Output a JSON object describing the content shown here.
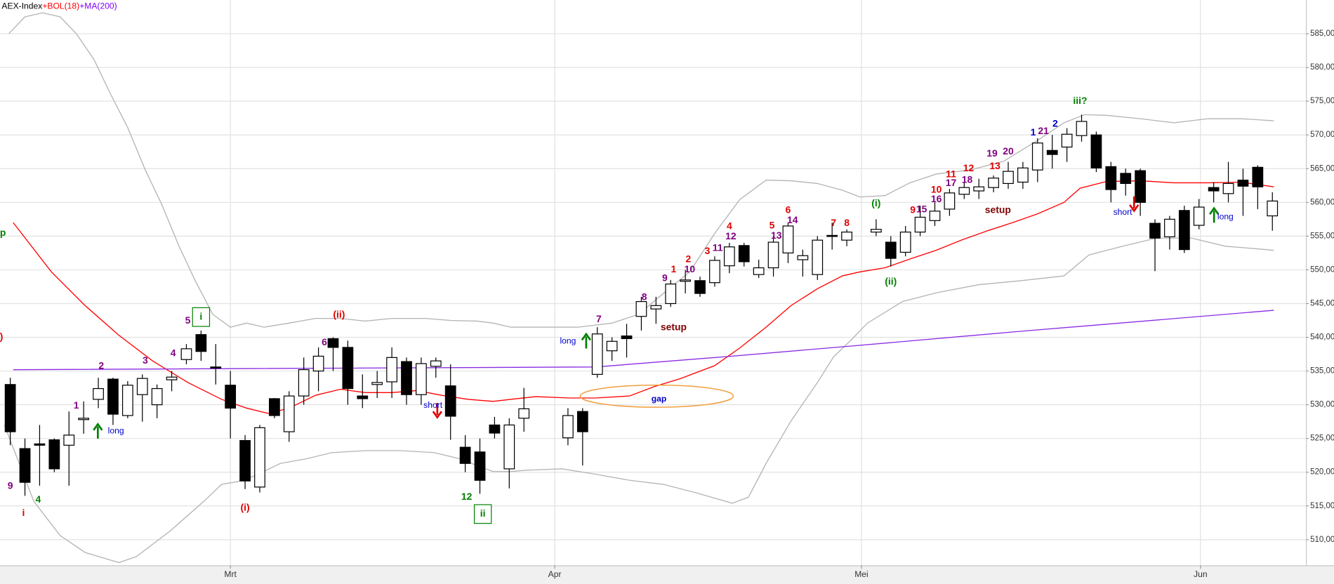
{
  "chart_data": {
    "type": "candlestick",
    "legend": [
      {
        "text": "AEX-Index",
        "color": "#000000"
      },
      {
        "text": "+BOL(18)",
        "color": "#ff0000"
      },
      {
        "text": "+MA(200)",
        "color": "#8000ff"
      }
    ],
    "x": [
      0,
      1,
      2,
      3,
      4,
      5,
      6,
      7,
      8,
      9,
      10,
      11,
      12,
      13,
      14,
      15,
      16,
      17,
      18,
      19,
      20,
      21,
      22,
      23,
      24,
      25,
      26,
      27,
      28,
      29,
      30,
      31,
      32,
      33,
      34,
      35,
      38,
      39,
      40,
      41,
      42,
      43,
      44,
      45,
      46,
      47,
      48,
      49,
      50,
      51,
      52,
      53,
      54,
      55,
      56,
      57,
      59,
      60,
      61,
      62,
      63,
      64,
      65,
      66,
      67,
      68,
      69,
      70,
      71,
      72,
      73,
      74,
      75,
      76,
      77,
      78,
      79,
      80,
      81,
      82,
      83,
      84,
      85,
      86
    ],
    "open": [
      533,
      523.5,
      524.2,
      524.8,
      524,
      527.8,
      530.8,
      533.8,
      528.4,
      531.5,
      530,
      533.7,
      536.7,
      540.4,
      535.6,
      532.9,
      524.7,
      517.8,
      530.9,
      526,
      531.3,
      535,
      539.8,
      538.5,
      531.3,
      533,
      533.4,
      536.4,
      531.5,
      535.7,
      532.8,
      523.7,
      523,
      527,
      520.5,
      528,
      525.1,
      529,
      534.5,
      538,
      540.2,
      543.1,
      544.2,
      545,
      548.3,
      548.4,
      548.1,
      550.6,
      553.6,
      549.3,
      550.3,
      552.5,
      551.5,
      549.3,
      555.1,
      554.4,
      555.6,
      554.1,
      552.6,
      555.6,
      557.3,
      559,
      561.2,
      561.7,
      562.2,
      562.8,
      563,
      564.8,
      567.7,
      568.2,
      569.9,
      570,
      565.3,
      564.3,
      564.7,
      556.9,
      554.9,
      558.8,
      556.6,
      562.2,
      561.3,
      563.3,
      565.2,
      558
    ],
    "high": [
      534,
      525,
      527,
      525,
      529,
      530.5,
      534,
      534,
      533.5,
      534.5,
      533,
      535,
      539,
      541,
      539,
      535,
      525.5,
      527,
      531,
      532,
      537,
      538.5,
      540,
      539.5,
      534.5,
      535,
      538.5,
      537,
      537,
      537,
      536,
      525.5,
      525,
      528.2,
      528,
      532.5,
      529.5,
      529.5,
      541.5,
      540,
      542,
      546,
      546,
      548.5,
      550,
      549,
      552,
      554,
      554,
      551.5,
      555,
      557,
      553,
      555,
      557,
      556,
      557.5,
      555,
      556.5,
      559.5,
      560,
      562,
      563,
      563.5,
      564,
      566,
      566,
      569.5,
      570,
      571,
      573,
      570.5,
      566,
      565,
      565,
      557.5,
      558,
      559.5,
      560.5,
      563,
      566,
      565,
      565.5,
      561.5
    ],
    "low": [
      524,
      516.5,
      518,
      520,
      518,
      525.7,
      529.5,
      527,
      528,
      527.5,
      528,
      532,
      536,
      536.5,
      533,
      525,
      517.5,
      517,
      528,
      524.5,
      530,
      532,
      535,
      530,
      529.5,
      531,
      531,
      530,
      530,
      534,
      524.8,
      520,
      516.8,
      525,
      517.6,
      526,
      524,
      521,
      534,
      536.5,
      537,
      541,
      542,
      544.5,
      546.5,
      546,
      547.5,
      549.5,
      550.5,
      548.8,
      549,
      551,
      549,
      548.5,
      553,
      553.5,
      555,
      550.5,
      552,
      555,
      556.5,
      558,
      560.5,
      560.5,
      561.5,
      562,
      562,
      563,
      565,
      566,
      569,
      564.5,
      560,
      561,
      558,
      549.8,
      553,
      552.5,
      556,
      560,
      560,
      558,
      559,
      555.8
    ],
    "close": [
      526,
      518.5,
      524,
      520.5,
      525.5,
      528,
      532.4,
      528.6,
      532.9,
      533.9,
      532.4,
      534.1,
      538.3,
      537.9,
      535.5,
      529.5,
      518.7,
      526.6,
      528.4,
      531.3,
      535.2,
      537.2,
      538.5,
      532.4,
      530.9,
      533.3,
      537,
      531.5,
      536.1,
      536.5,
      528.3,
      521.3,
      518.8,
      525.8,
      527,
      529.4,
      528.4,
      526,
      540.5,
      539.4,
      539.8,
      545.3,
      544.7,
      547.9,
      548.5,
      546.5,
      551.4,
      553.4,
      551.2,
      550.3,
      554.1,
      556.5,
      552.1,
      554.4,
      555,
      555.6,
      556,
      551.7,
      555.6,
      557.8,
      558.7,
      561.4,
      562.2,
      562.3,
      563.6,
      564.6,
      565.1,
      568.8,
      567.1,
      570.1,
      572,
      565.1,
      561.9,
      562.8,
      560,
      554.7,
      557.5,
      553,
      559.3,
      561.7,
      562.8,
      562.4,
      562.3,
      560.2
    ],
    "lines": [
      {
        "color": "#b4b4b4",
        "x": [
          -0.1,
          1.0,
          2.2,
          3.4,
          4.5,
          5.7,
          6.8,
          8.0,
          9.2,
          10.3,
          11.5,
          12.6,
          13.8,
          15.0,
          16.1,
          17.3,
          19.0,
          20.8,
          22.5,
          24.2,
          26.0,
          28.3,
          30.0,
          31.8,
          32.9,
          34.1,
          36.4,
          38.7,
          41.0,
          42.8,
          44.5,
          46.3,
          48.0,
          49.7,
          51.5,
          53.2,
          55.0,
          56.7,
          57.9,
          59.6,
          61.3,
          63.1,
          65.4,
          67.7,
          70.0,
          71.8,
          73.2,
          74.7,
          77.0,
          79.3,
          81.6,
          83.9,
          86.1
        ],
        "values": [
          585.0,
          587.5,
          588.1,
          587.5,
          585.0,
          581.2,
          576.2,
          571.1,
          564.8,
          559.8,
          553.5,
          548.4,
          543.4,
          541.5,
          542.1,
          541.5,
          542.1,
          542.8,
          542.8,
          542.4,
          542.8,
          542.8,
          542.5,
          542.4,
          542.1,
          541.5,
          541.5,
          541.5,
          542.1,
          543.4,
          546.5,
          549.7,
          555.4,
          560.4,
          563.3,
          563.2,
          562.8,
          561.8,
          560.8,
          561.0,
          562.9,
          564.2,
          564.8,
          566.1,
          569.2,
          571.8,
          573.0,
          572.9,
          572.4,
          571.8,
          572.4,
          572.4,
          572.1
        ]
      },
      {
        "color": "#b4b4b4",
        "x": [
          -0.4,
          1.6,
          3.4,
          5.1,
          7.4,
          8.6,
          10.9,
          13.2,
          14.4,
          15.5,
          16.7,
          18.4,
          20.2,
          21.9,
          24.2,
          26.6,
          28.9,
          30.6,
          31.8,
          32.9,
          34.1,
          35.2,
          37.6,
          39.9,
          42.2,
          44.5,
          46.8,
          49.2,
          50.3,
          51.5,
          53.2,
          55.0,
          56.1,
          57.3,
          58.4,
          60.8,
          63.1,
          66.0,
          68.9,
          71.8,
          73.5,
          75.8,
          78.1,
          80.5,
          82.8,
          84.5,
          86.1
        ],
        "values": [
          527.0,
          515.7,
          510.6,
          508.1,
          506.6,
          507.5,
          511.3,
          515.7,
          518.2,
          518.6,
          519.5,
          521.3,
          522.0,
          522.9,
          523.2,
          523.2,
          522.9,
          522.0,
          521.0,
          520.1,
          520.1,
          520.3,
          520.5,
          519.7,
          518.8,
          518.2,
          516.9,
          515.4,
          516.3,
          521.3,
          527.6,
          533.3,
          537.1,
          539.6,
          542.1,
          545.3,
          546.6,
          547.8,
          548.4,
          549.1,
          552.2,
          553.5,
          554.7,
          554.7,
          553.5,
          553.2,
          552.9
        ]
      },
      {
        "color": "#ff0000",
        "x": [
          0.2,
          2.8,
          5.1,
          7.4,
          9.7,
          12.1,
          14.4,
          16.1,
          17.6,
          19.0,
          20.8,
          22.5,
          24.2,
          26.0,
          27.7,
          29.4,
          31.2,
          32.9,
          34.1,
          35.8,
          38.1,
          39.9,
          42.2,
          43.9,
          45.7,
          48.0,
          49.7,
          51.5,
          53.2,
          55.0,
          56.7,
          57.9,
          59.6,
          61.3,
          63.1,
          64.8,
          66.6,
          68.3,
          70.0,
          71.8,
          72.9,
          74.7,
          77.0,
          79.3,
          81.6,
          83.9,
          86.1
        ],
        "values": [
          557.0,
          549.7,
          544.7,
          540.3,
          536.5,
          533.3,
          530.8,
          529.5,
          528.7,
          529.5,
          531.4,
          532.3,
          531.8,
          531.8,
          532.1,
          531.4,
          530.8,
          530.5,
          530.8,
          531.2,
          531.0,
          531.0,
          531.3,
          532.7,
          533.9,
          535.8,
          538.4,
          541.5,
          544.7,
          547.2,
          549.1,
          549.7,
          550.3,
          551.6,
          552.9,
          554.4,
          555.8,
          557.0,
          558.3,
          560.0,
          562.1,
          563.1,
          563.2,
          562.9,
          562.9,
          563.0,
          562.3
        ]
      },
      {
        "color": "#8a2be2",
        "x": [
          0.2,
          39.9,
          48.6,
          57.3,
          68.9,
          86.1
        ],
        "values": [
          535.2,
          535.6,
          537.1,
          538.7,
          540.9,
          544.0
        ]
      }
    ],
    "xlim": [
      -0.7,
      88.3
    ],
    "xticks": [
      {
        "value": 15,
        "label": "Mrt"
      },
      {
        "value": 37.1,
        "label": "Apr"
      },
      {
        "value": 58,
        "label": "Mei"
      },
      {
        "value": 81.1,
        "label": "Jun"
      }
    ],
    "ylim": [
      506.2,
      590
    ],
    "yticks": [
      {
        "value": 510,
        "label": "510,00"
      },
      {
        "value": 515,
        "label": "515,00"
      },
      {
        "value": 520,
        "label": "520,00"
      },
      {
        "value": 525,
        "label": "525,00"
      },
      {
        "value": 530,
        "label": "530,00"
      },
      {
        "value": 535,
        "label": "535,00"
      },
      {
        "value": 540,
        "label": "540,00"
      },
      {
        "value": 545,
        "label": "545,00"
      },
      {
        "value": 550,
        "label": "550,00"
      },
      {
        "value": 555,
        "label": "555,00"
      },
      {
        "value": 560,
        "label": "560,00"
      },
      {
        "value": 565,
        "label": "565,00"
      },
      {
        "value": 570,
        "label": "570,00"
      },
      {
        "value": 575,
        "label": "575,00"
      },
      {
        "value": 580,
        "label": "580,00"
      },
      {
        "value": 585,
        "label": "585,00"
      }
    ],
    "grid": true,
    "up_color": "#ffffff",
    "down_color": "#000000",
    "annotations": [
      {
        "text": "p",
        "x": -0.5,
        "y": 555.4,
        "color": "#008000"
      },
      {
        "text": ")",
        "x": -0.6,
        "y": 540.0,
        "color": "#e00000"
      },
      {
        "text": "9",
        "x": 0,
        "y": 517.9,
        "color": "#800080"
      },
      {
        "text": "4",
        "x": 1.9,
        "y": 515.9,
        "color": "#008000"
      },
      {
        "text": "i",
        "x": 0.9,
        "y": 513.9,
        "color": "#e00000"
      },
      {
        "text": "1",
        "x": 4.5,
        "y": 529.8,
        "color": "#800080"
      },
      {
        "text": "long",
        "x": 7.2,
        "y": 526.1,
        "color": "#0000cc"
      },
      {
        "text": "2",
        "x": 6.2,
        "y": 535.7,
        "color": "#800080"
      },
      {
        "text": "3",
        "x": 9.2,
        "y": 536.5,
        "color": "#800080"
      },
      {
        "text": "4",
        "x": 11.1,
        "y": 537.6,
        "color": "#800080"
      },
      {
        "text": "5",
        "x": 12.1,
        "y": 542.4,
        "color": "#800080"
      },
      {
        "text": "i",
        "x": 13.0,
        "y": 543.0,
        "color": "#008000",
        "boxed": true
      },
      {
        "text": "(i)",
        "x": 16.0,
        "y": 514.7,
        "color": "#e00000"
      },
      {
        "text": "(ii)",
        "x": 22.4,
        "y": 543.3,
        "color": "#e00000"
      },
      {
        "text": "6",
        "x": 21.4,
        "y": 539.2,
        "color": "#800080"
      },
      {
        "text": "short",
        "x": 28.8,
        "y": 529.9,
        "color": "#0000cc"
      },
      {
        "text": "12",
        "x": 31.1,
        "y": 516.3,
        "color": "#008000"
      },
      {
        "text": "ii",
        "x": 32.2,
        "y": 513.8,
        "color": "#008000",
        "boxed": true
      },
      {
        "text": "long",
        "x": 38.0,
        "y": 539.4,
        "color": "#0000cc"
      },
      {
        "text": "7",
        "x": 40.1,
        "y": 542.6,
        "color": "#800080"
      },
      {
        "text": "gap",
        "x": 44.2,
        "y": 530.8,
        "color": "#0000cc"
      },
      {
        "text": "setup",
        "x": 45.2,
        "y": 541.4,
        "color": "#800000"
      },
      {
        "text": "8",
        "x": 43.2,
        "y": 545.9,
        "color": "#800080"
      },
      {
        "text": "9",
        "x": 44.6,
        "y": 548.7,
        "color": "#800080"
      },
      {
        "text": "1",
        "x": 45.2,
        "y": 550.0,
        "color": "#e00000"
      },
      {
        "text": "10",
        "x": 46.3,
        "y": 550.0,
        "color": "#800080"
      },
      {
        "text": "2",
        "x": 46.2,
        "y": 551.5,
        "color": "#e00000"
      },
      {
        "text": "3",
        "x": 47.5,
        "y": 552.7,
        "color": "#e00000"
      },
      {
        "text": "11",
        "x": 48.2,
        "y": 553.2,
        "color": "#800080"
      },
      {
        "text": "12",
        "x": 49.1,
        "y": 554.9,
        "color": "#800080"
      },
      {
        "text": "4",
        "x": 49.0,
        "y": 556.4,
        "color": "#e00000"
      },
      {
        "text": "5",
        "x": 51.9,
        "y": 556.5,
        "color": "#e00000"
      },
      {
        "text": "13",
        "x": 52.2,
        "y": 555.0,
        "color": "#800080"
      },
      {
        "text": "6",
        "x": 53.0,
        "y": 558.8,
        "color": "#e00000"
      },
      {
        "text": "14",
        "x": 53.3,
        "y": 557.3,
        "color": "#800080"
      },
      {
        "text": "7",
        "x": 56.1,
        "y": 556.9,
        "color": "#e00000"
      },
      {
        "text": "8",
        "x": 57.0,
        "y": 556.9,
        "color": "#e00000"
      },
      {
        "text": "(i)",
        "x": 59.0,
        "y": 559.8,
        "color": "#008000"
      },
      {
        "text": "(ii)",
        "x": 60.0,
        "y": 548.2,
        "color": "#008000"
      },
      {
        "text": "9",
        "x": 61.5,
        "y": 558.8,
        "color": "#e00000"
      },
      {
        "text": "15",
        "x": 62.1,
        "y": 558.9,
        "color": "#800080"
      },
      {
        "text": "10",
        "x": 63.1,
        "y": 561.8,
        "color": "#e00000"
      },
      {
        "text": "16",
        "x": 63.1,
        "y": 560.4,
        "color": "#800080"
      },
      {
        "text": "11",
        "x": 64.1,
        "y": 564.1,
        "color": "#e00000"
      },
      {
        "text": "17",
        "x": 64.1,
        "y": 562.8,
        "color": "#800080"
      },
      {
        "text": "12",
        "x": 65.3,
        "y": 565.0,
        "color": "#e00000"
      },
      {
        "text": "18",
        "x": 65.2,
        "y": 563.3,
        "color": "#800080"
      },
      {
        "text": "13",
        "x": 67.1,
        "y": 565.3,
        "color": "#e00000"
      },
      {
        "text": "19",
        "x": 66.9,
        "y": 567.2,
        "color": "#800080"
      },
      {
        "text": "20",
        "x": 68.0,
        "y": 567.5,
        "color": "#800080"
      },
      {
        "text": "setup",
        "x": 67.3,
        "y": 558.8,
        "color": "#800000"
      },
      {
        "text": "1",
        "x": 69.7,
        "y": 570.3,
        "color": "#0000cc"
      },
      {
        "text": "21",
        "x": 70.4,
        "y": 570.5,
        "color": "#800080"
      },
      {
        "text": "2",
        "x": 71.2,
        "y": 571.6,
        "color": "#0000cc"
      },
      {
        "text": "iii?",
        "x": 72.9,
        "y": 575.0,
        "color": "#008000"
      },
      {
        "text": "short",
        "x": 75.8,
        "y": 558.5,
        "color": "#0000cc"
      },
      {
        "text": "long",
        "x": 82.8,
        "y": 557.8,
        "color": "#0000cc"
      }
    ]
  }
}
